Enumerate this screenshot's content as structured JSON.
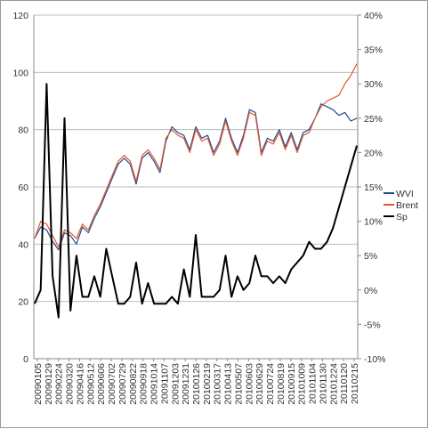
{
  "chart_data": {
    "type": "line",
    "title": "",
    "xlabel": "",
    "ylabel": "",
    "ylim_left": [
      0,
      120
    ],
    "yticks_left": [
      "0",
      "20",
      "40",
      "60",
      "80",
      "100",
      "120"
    ],
    "ylim_right": [
      -10,
      40
    ],
    "yticks_right": [
      "-10%",
      "-5%",
      "0%",
      "5%",
      "10%",
      "15%",
      "20%",
      "25%",
      "30%",
      "35%",
      "40%"
    ],
    "grid": "horizontal",
    "legend_position": "right",
    "x_tick_labels": [
      "20090105",
      "20090129",
      "20090224",
      "20090320",
      "20090416",
      "20090512",
      "20090606",
      "20090702",
      "20090729",
      "20090822",
      "20090918",
      "20091014",
      "20091107",
      "20091203",
      "20091231",
      "20100126",
      "20100219",
      "20100317",
      "20100413",
      "20100507",
      "20100603",
      "20100629",
      "20100724",
      "20100819",
      "20100915",
      "20101009",
      "20101104",
      "20101130",
      "20101224",
      "20110120",
      "20110215"
    ],
    "series": [
      {
        "name": "WVI",
        "axis": "left",
        "color": "#1f4e8c",
        "values": [
          42,
          46,
          45,
          41,
          38,
          44,
          43,
          40,
          46,
          44,
          49,
          53,
          58,
          63,
          68,
          70,
          68,
          61,
          70,
          72,
          69,
          65,
          76,
          81,
          79,
          78,
          73,
          81,
          77,
          78,
          72,
          76,
          84,
          77,
          72,
          78,
          87,
          86,
          72,
          77,
          76,
          80,
          74,
          79,
          73,
          79,
          80,
          84,
          89,
          88,
          87,
          85,
          86,
          83,
          84
        ]
      },
      {
        "name": "Brent",
        "axis": "left",
        "color": "#e4572e",
        "values": [
          42,
          48,
          47,
          43,
          39,
          45,
          44,
          42,
          47,
          45,
          50,
          54,
          59,
          64,
          69,
          71,
          69,
          62,
          71,
          73,
          70,
          66,
          77,
          80,
          78,
          77,
          72,
          80,
          76,
          77,
          71,
          75,
          83,
          76,
          71,
          77,
          86,
          85,
          71,
          76,
          75,
          79,
          73,
          78,
          72,
          78,
          79,
          84,
          88,
          90,
          91,
          92,
          96,
          99,
          103
        ]
      },
      {
        "name": "Sp",
        "axis": "right",
        "color": "#000000",
        "values": [
          -2,
          0,
          30,
          2,
          -4,
          25,
          -3,
          5,
          -1,
          -1,
          2,
          -1,
          6,
          2,
          -2,
          -2,
          -1,
          4,
          -2,
          1,
          -2,
          -2,
          -2,
          -1,
          -2,
          3,
          -1,
          8,
          -1,
          -1,
          -1,
          0,
          5,
          -1,
          2,
          0,
          1,
          5,
          2,
          2,
          1,
          2,
          1,
          3,
          4,
          5,
          7,
          6,
          6,
          7,
          9,
          12,
          15,
          18,
          21
        ]
      }
    ]
  }
}
